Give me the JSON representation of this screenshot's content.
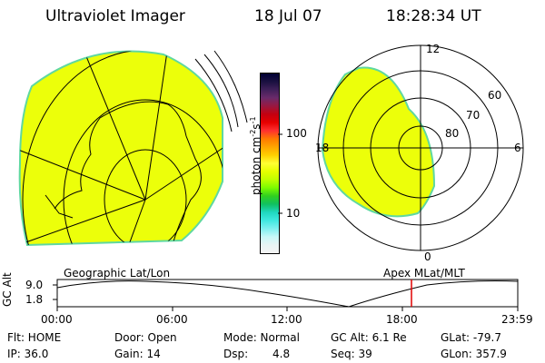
{
  "header": {
    "instrument": "Ultraviolet Imager",
    "date": "18 Jul 07",
    "time": "18:28:34 UT"
  },
  "colorbar": {
    "unit_label": "photon cm",
    "tick_labels": [
      "100",
      "10"
    ],
    "colors": [
      "#000033",
      "#1a1040",
      "#40205a",
      "#6a2a6a",
      "#9a1840",
      "#c40010",
      "#e60000",
      "#ff3030",
      "#ff7a00",
      "#ffa500",
      "#ffd000",
      "#ffff33",
      "#e6ff00",
      "#c0ff00",
      "#7cfc00",
      "#30d020",
      "#10c060",
      "#20d8c0",
      "#40e8e0",
      "#80f0f0",
      "#c8f8f8",
      "#e8f4f4",
      "#f4f4f4"
    ]
  },
  "polar": {
    "labels": [
      "12",
      "6",
      "0",
      "18",
      "60",
      "70",
      "80"
    ]
  },
  "altitude_panel": {
    "left_title": "Geographic Lat/Lon",
    "right_title": "Apex MLat/MLT",
    "axis_label": "GC Alt",
    "y_ticks": [
      "9.0",
      "1.8"
    ],
    "x_ticks": [
      "00:00",
      "06:00",
      "12:00",
      "18:00",
      "23:59"
    ],
    "marker_time": "18:28",
    "marker_color": "#e00000"
  },
  "status": {
    "flt": "Flt: HOME",
    "ip": "IP: 36.0",
    "door": "Door: Open",
    "gain": "Gain: 14",
    "mode": "Mode: Normal",
    "dsp_label": "Dsp:",
    "dsp_value": "4.8",
    "gc_alt": "GC Alt: 6.1 Re",
    "seq": "Seq: 39",
    "glat": "GLat: -79.7",
    "glon": "GLon: 357.9"
  },
  "image_fill_color": "#ecff0a",
  "image_edge_color": "#5fd8a0"
}
